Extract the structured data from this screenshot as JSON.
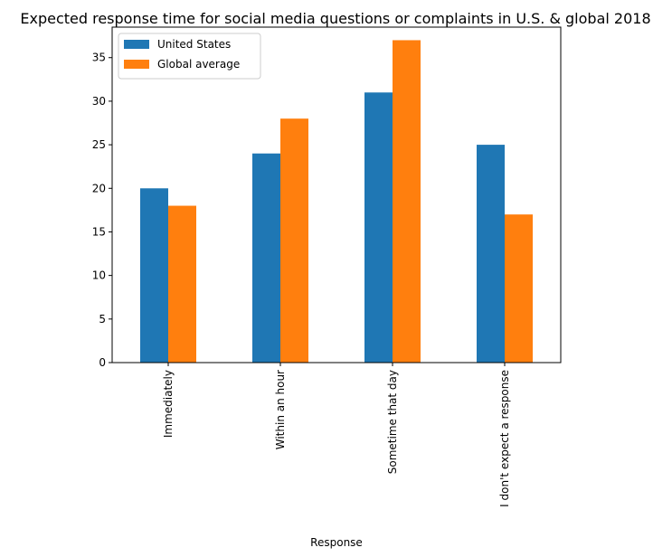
{
  "chart_data": {
    "type": "bar",
    "title": "Expected response time for social media questions or complaints in U.S. & global 2018",
    "xlabel": "Response",
    "ylabel": "",
    "categories": [
      "Immediately",
      "Within an hour",
      "Sometime that day",
      "I don't expect a response"
    ],
    "series": [
      {
        "name": "United States",
        "values": [
          20,
          24,
          31,
          25
        ],
        "color": "#1f77b4"
      },
      {
        "name": "Global average",
        "values": [
          18,
          28,
          37,
          17
        ],
        "color": "#ff7f0e"
      }
    ],
    "ylim": [
      0,
      38.5
    ],
    "yticks": [
      0,
      5,
      10,
      15,
      20,
      25,
      30,
      35
    ],
    "grid": false,
    "legend_position": "top-left"
  }
}
